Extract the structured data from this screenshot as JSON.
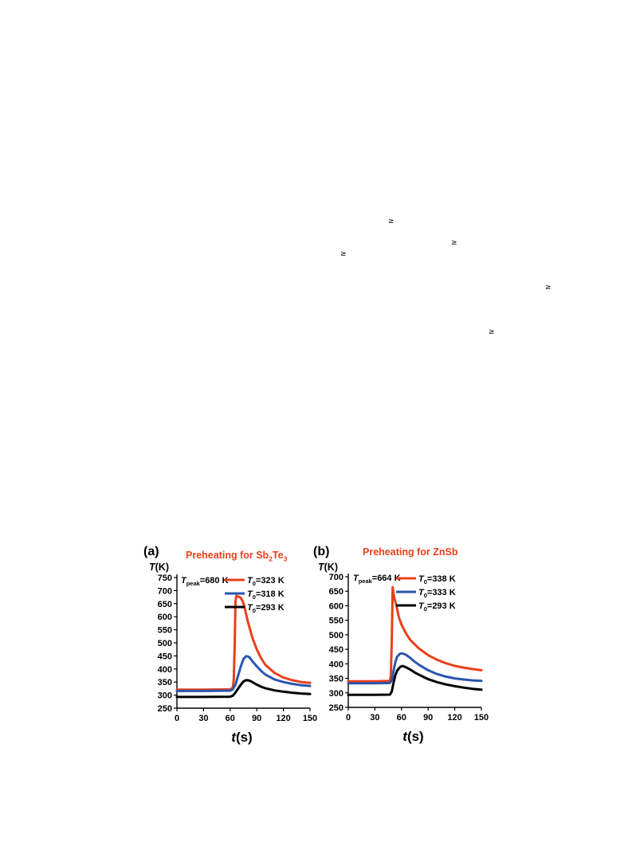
{
  "page_marks": [
    "≥",
    "≥",
    "≥",
    "≥",
    "≥"
  ],
  "chart_data": [
    {
      "panel": "(a)",
      "type": "line",
      "title_prefix": "Preheating for Sb",
      "title_sub1": "2",
      "title_mid": "Te",
      "title_sub2": "3",
      "title_color": "#e8401c",
      "ylabel_main": "T",
      "ylabel_unit": "(K)",
      "xlabel_main": "t",
      "xlabel_unit": "(s)",
      "peak_prefix": "T",
      "peak_sub": "peak",
      "peak_value": "=680 K",
      "xlim": [
        0,
        150
      ],
      "ylim": [
        250,
        750
      ],
      "xticks": [
        "0",
        "30",
        "60",
        "90",
        "120",
        "150"
      ],
      "yticks": [
        "250",
        "300",
        "350",
        "400",
        "450",
        "500",
        "550",
        "600",
        "650",
        "700",
        "750"
      ],
      "series": [
        {
          "legend_main": "T",
          "legend_sub": "0",
          "legend_value": "=323 K",
          "color": "#e8401c",
          "x": [
            0,
            30,
            60,
            63,
            64,
            65,
            66,
            67,
            68,
            70,
            72,
            74,
            76,
            78,
            80,
            85,
            90,
            95,
            100,
            110,
            120,
            130,
            140,
            150
          ],
          "y": [
            321,
            321,
            322,
            328,
            360,
            480,
            660,
            680,
            678,
            676,
            672,
            660,
            640,
            610,
            580,
            520,
            475,
            440,
            415,
            385,
            367,
            357,
            350,
            347
          ]
        },
        {
          "legend_main": "T",
          "legend_sub": "0",
          "legend_value": "=318 K",
          "color": "#2a56ad",
          "x": [
            0,
            30,
            60,
            63,
            66,
            69,
            72,
            75,
            78,
            80,
            82,
            85,
            90,
            95,
            100,
            110,
            120,
            130,
            140,
            150
          ],
          "y": [
            316,
            316,
            317,
            322,
            340,
            375,
            410,
            438,
            449,
            448,
            444,
            430,
            410,
            392,
            378,
            360,
            350,
            343,
            338,
            335
          ]
        },
        {
          "legend_main": "T",
          "legend_sub": "0",
          "legend_value": "=293 K",
          "color": "#000000",
          "x": [
            0,
            30,
            60,
            63,
            66,
            69,
            72,
            75,
            78,
            80,
            82,
            85,
            90,
            95,
            100,
            110,
            120,
            130,
            140,
            150
          ],
          "y": [
            293,
            293,
            294,
            298,
            310,
            325,
            340,
            352,
            357,
            357,
            355,
            350,
            340,
            332,
            326,
            318,
            313,
            309,
            306,
            304
          ]
        }
      ]
    },
    {
      "panel": "(b)",
      "type": "line",
      "title_prefix": "Preheating for ZnSb",
      "title_sub1": "",
      "title_mid": "",
      "title_sub2": "",
      "title_color": "#e8401c",
      "ylabel_main": "T",
      "ylabel_unit": "(K)",
      "xlabel_main": "t",
      "xlabel_unit": "(s)",
      "peak_prefix": "T",
      "peak_sub": "peak",
      "peak_value": "=664 K",
      "xlim": [
        0,
        150
      ],
      "ylim": [
        250,
        700
      ],
      "xticks": [
        "0",
        "30",
        "60",
        "90",
        "120",
        "150"
      ],
      "yticks": [
        "250",
        "300",
        "350",
        "400",
        "450",
        "500",
        "550",
        "600",
        "650",
        "700"
      ],
      "series": [
        {
          "legend_main": "T",
          "legend_sub": "0",
          "legend_value": "=338 K",
          "color": "#e8401c",
          "x": [
            0,
            30,
            47,
            48,
            49,
            50,
            51,
            52,
            53,
            55,
            57,
            60,
            65,
            70,
            80,
            90,
            100,
            110,
            120,
            130,
            140,
            150
          ],
          "y": [
            340,
            340,
            341,
            360,
            480,
            664,
            640,
            625,
            615,
            590,
            560,
            535,
            505,
            482,
            452,
            430,
            414,
            402,
            393,
            387,
            382,
            378
          ]
        },
        {
          "legend_main": "T",
          "legend_sub": "0",
          "legend_value": "=333 K",
          "color": "#2a56ad",
          "x": [
            0,
            30,
            47,
            49,
            51,
            53,
            55,
            58,
            60,
            62,
            65,
            70,
            75,
            80,
            90,
            100,
            110,
            120,
            130,
            140,
            150
          ],
          "y": [
            333,
            333,
            334,
            345,
            375,
            405,
            424,
            434,
            436,
            435,
            431,
            420,
            407,
            396,
            378,
            365,
            356,
            350,
            346,
            343,
            341
          ]
        },
        {
          "legend_main": "T",
          "legend_sub": "0",
          "legend_value": "=293 K",
          "color": "#000000",
          "x": [
            0,
            30,
            47,
            49,
            51,
            53,
            55,
            58,
            60,
            62,
            65,
            70,
            75,
            80,
            90,
            100,
            110,
            120,
            130,
            140,
            150
          ],
          "y": [
            293,
            293,
            294,
            305,
            335,
            360,
            376,
            388,
            392,
            392,
            388,
            380,
            370,
            362,
            347,
            337,
            329,
            323,
            318,
            314,
            311
          ]
        }
      ]
    }
  ]
}
